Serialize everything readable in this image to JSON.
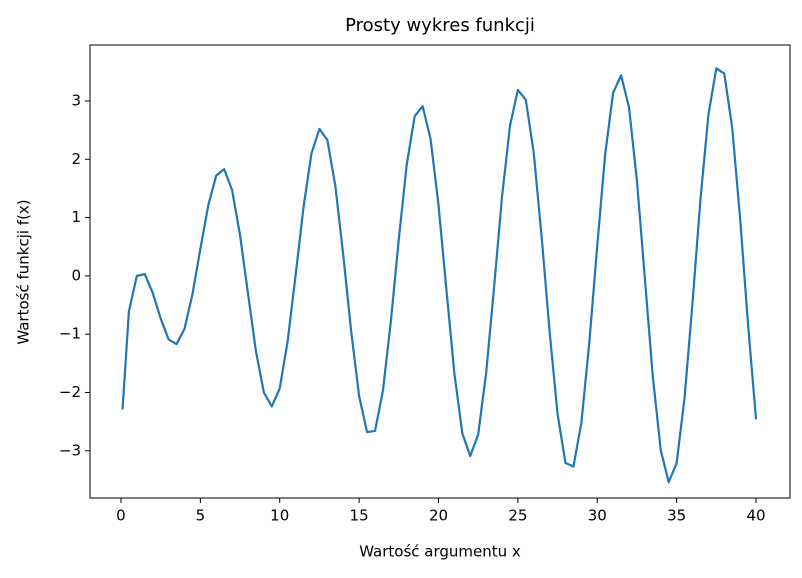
{
  "chart_data": {
    "type": "line",
    "title": "Prosty wykres funkcji",
    "xlabel": "Wartość argumentu x",
    "ylabel": "Wartość funkcji f(x)",
    "color": "#1f77b4",
    "x": [
      0.1,
      0.5,
      1.0,
      1.5,
      2.0,
      2.5,
      3.0,
      3.5,
      4.0,
      4.5,
      5.0,
      5.5,
      6.0,
      6.5,
      7.0,
      7.5,
      8.0,
      8.5,
      9.0,
      9.5,
      10.0,
      10.5,
      11.0,
      11.5,
      12.0,
      12.5,
      13.0,
      13.5,
      14.0,
      14.5,
      15.0,
      15.5,
      16.0,
      16.5,
      17.0,
      17.5,
      18.0,
      18.5,
      19.0,
      19.5,
      20.0,
      20.5,
      21.0,
      21.5,
      22.0,
      22.5,
      23.0,
      23.5,
      24.0,
      24.5,
      25.0,
      25.5,
      26.0,
      26.5,
      27.0,
      27.5,
      28.0,
      28.5,
      29.0,
      29.5,
      30.0,
      30.5,
      31.0,
      31.5,
      32.0,
      32.5,
      33.0,
      33.5,
      34.0,
      34.5,
      35.0,
      35.5,
      36.0,
      36.5,
      37.0,
      37.5,
      38.0,
      38.5,
      39.0,
      39.5,
      40.0
    ],
    "values": [
      -2.29,
      -0.61,
      0,
      0.03,
      -0.29,
      -0.73,
      -1.09,
      -1.17,
      -0.91,
      -0.32,
      0.46,
      1.21,
      1.72,
      1.83,
      1.47,
      0.7,
      -0.3,
      -1.29,
      -2.0,
      -2.24,
      -1.93,
      -1.12,
      0.01,
      1.18,
      2.1,
      2.52,
      2.33,
      1.55,
      0.36,
      -0.95,
      -2.06,
      -2.68,
      -2.66,
      -1.97,
      -0.78,
      0.63,
      1.91,
      2.74,
      2.91,
      2.35,
      1.22,
      -0.24,
      -1.67,
      -2.7,
      -3.09,
      -2.72,
      -1.67,
      -0.2,
      1.35,
      2.57,
      3.19,
      3.02,
      2.11,
      0.66,
      -0.96,
      -2.37,
      -3.21,
      -3.27,
      -2.52,
      -1.14,
      0.52,
      2.09,
      3.14,
      3.44,
      2.89,
      1.63,
      -0.05,
      -1.73,
      -2.99,
      -3.54,
      -3.21,
      -2.09,
      -0.46,
      1.31,
      2.76,
      3.56,
      3.47,
      2.54,
      0.98,
      -0.84,
      -2.46
    ],
    "xlim": [
      -1.95,
      42.14
    ],
    "ylim": [
      -3.81,
      3.96
    ],
    "xticks": [
      0,
      5,
      10,
      15,
      20,
      25,
      30,
      35,
      40
    ],
    "yticks": [
      {
        "value": -3,
        "label": "−3"
      },
      {
        "value": -2,
        "label": "−2"
      },
      {
        "value": -1,
        "label": "−1"
      },
      0,
      1,
      2,
      3
    ],
    "grid": false
  }
}
